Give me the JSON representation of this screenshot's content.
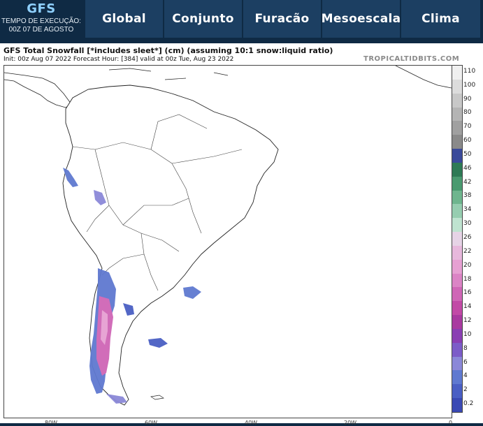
{
  "header": {
    "model": "GFS",
    "run_label": "TEMPO DE EXECUÇÃO:",
    "run_time": "00Z 07 DE AGOSTO",
    "tabs": [
      "Global",
      "Conjunto",
      "Furacão",
      "Mesoescala",
      "Clima"
    ]
  },
  "map": {
    "title": "GFS Total Snowfall [*includes sleet*] (cm) (assuming 10:1 snow:liquid ratio)",
    "subtitle": "Init: 00z Aug 07 2022   Forecast Hour: [384]   valid at 00z Tue, Aug 23 2022",
    "brand": "TROPICALTIDBITS.COM",
    "lon_labels": [
      "80W",
      "60W",
      "40W",
      "20W",
      "0"
    ]
  },
  "colorbar": {
    "labels": [
      "110",
      "100",
      "90",
      "80",
      "70",
      "60",
      "50",
      "46",
      "42",
      "38",
      "34",
      "30",
      "26",
      "22",
      "20",
      "18",
      "16",
      "14",
      "12",
      "10",
      "8",
      "6",
      "4",
      "2",
      "0.2"
    ],
    "colors": [
      "#f0f0f0",
      "#dcdcdc",
      "#c8c8c8",
      "#b4b4b4",
      "#a0a0a0",
      "#8a8a8a",
      "#3a4a9a",
      "#2e7a55",
      "#4a9a70",
      "#6fb58e",
      "#96cdb0",
      "#bfe3d0",
      "#e6d3e6",
      "#e7b8dc",
      "#e6a0d2",
      "#db84c5",
      "#cf66b6",
      "#c24aa6",
      "#a93aa0",
      "#8a3fb3",
      "#7c5cc8",
      "#8b88d8",
      "#5f79d0",
      "#4a5fc4",
      "#3a49b4"
    ]
  },
  "colors": {
    "header_bg": "#0f2a44",
    "tab_bg": "#1c3f62",
    "model_text": "#8fd1ff"
  }
}
